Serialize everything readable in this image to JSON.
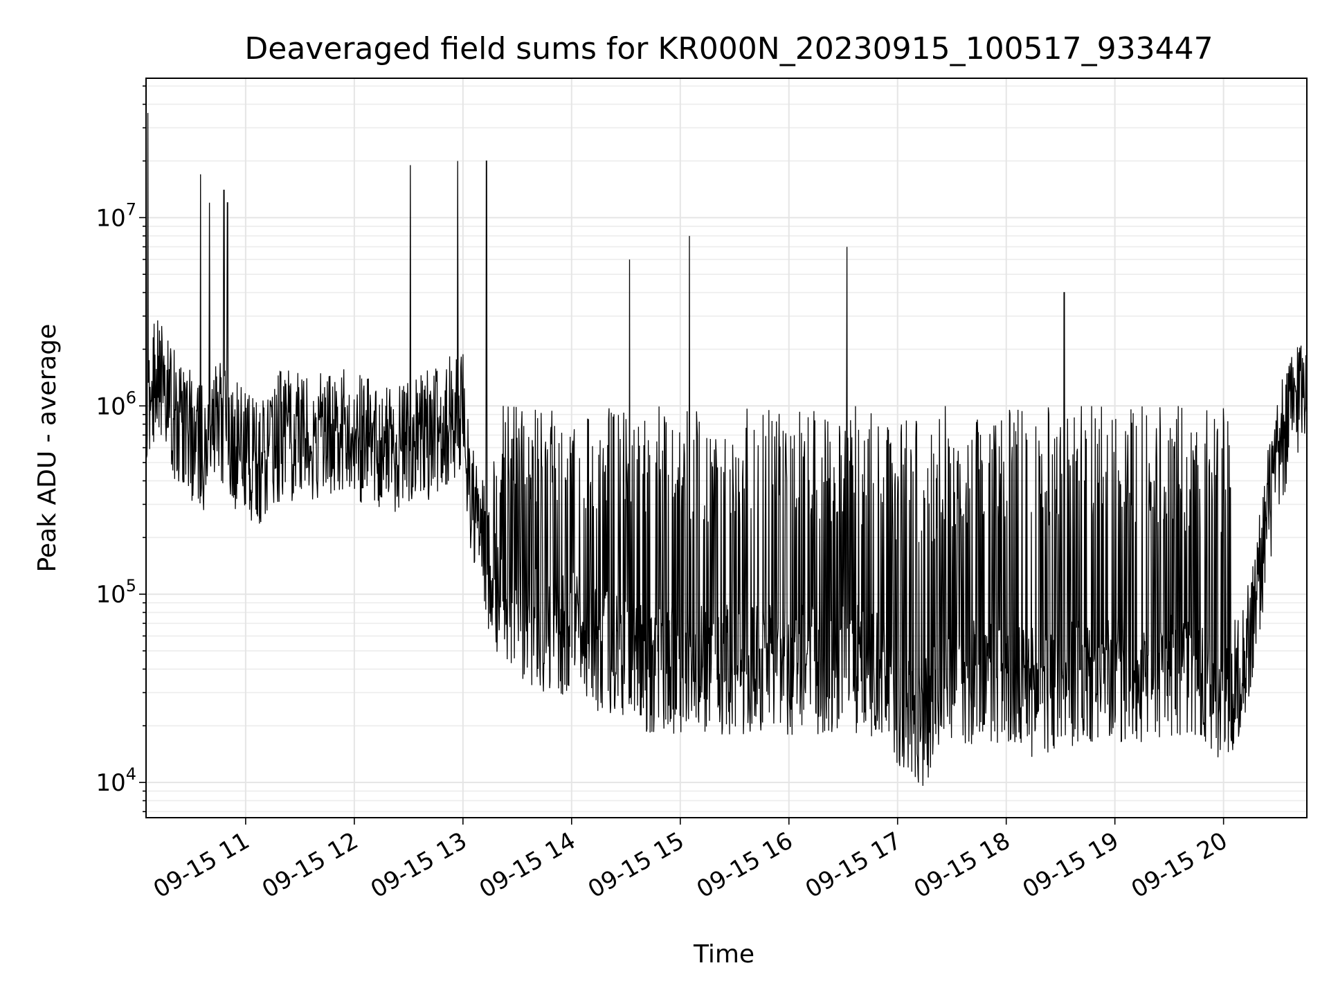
{
  "chart_data": {
    "type": "line",
    "title": "Deaveraged field sums for KR000N_20230915_100517_933447",
    "xlabel": "Time",
    "ylabel": "Peak ADU - average",
    "yscale": "log",
    "ylim": [
      6500,
      55000000
    ],
    "xlim": [
      "2023-09-15 10:05",
      "2023-09-15 20:46"
    ],
    "x_ticks": [
      "09-15 11",
      "09-15 12",
      "09-15 13",
      "09-15 14",
      "09-15 15",
      "09-15 16",
      "09-15 17",
      "09-15 18",
      "09-15 19",
      "09-15 20"
    ],
    "y_ticks": [
      "10^4",
      "10^5",
      "10^6",
      "10^7"
    ],
    "grid": true,
    "series_color": "#000000",
    "series": [
      {
        "x": [
          "2023-09-15 10:05",
          "2023-09-15 10:06",
          "2023-09-15 10:10",
          "2023-09-15 10:20",
          "2023-09-15 10:30",
          "2023-09-15 10:35",
          "2023-09-15 10:36",
          "2023-09-15 10:40",
          "2023-09-15 10:45",
          "2023-09-15 10:48",
          "2023-09-15 10:50",
          "2023-09-15 10:55",
          "2023-09-15 11:05",
          "2023-09-15 11:20",
          "2023-09-15 11:40",
          "2023-09-15 12:00",
          "2023-09-15 12:20",
          "2023-09-15 12:31",
          "2023-09-15 12:40",
          "2023-09-15 12:57",
          "2023-09-15 13:00",
          "2023-09-15 13:05",
          "2023-09-15 13:13",
          "2023-09-15 13:20",
          "2023-09-15 13:40",
          "2023-09-15 14:00",
          "2023-09-15 14:20",
          "2023-09-15 14:32",
          "2023-09-15 14:45",
          "2023-09-15 15:05",
          "2023-09-15 15:20",
          "2023-09-15 15:40",
          "2023-09-15 16:00",
          "2023-09-15 16:20",
          "2023-09-15 16:32",
          "2023-09-15 16:45",
          "2023-09-15 17:00",
          "2023-09-15 17:15",
          "2023-09-15 17:30",
          "2023-09-15 17:50",
          "2023-09-15 18:10",
          "2023-09-15 18:32",
          "2023-09-15 18:50",
          "2023-09-15 19:10",
          "2023-09-15 19:30",
          "2023-09-15 19:50",
          "2023-09-15 20:05",
          "2023-09-15 20:15",
          "2023-09-15 20:25",
          "2023-09-15 20:35",
          "2023-09-15 20:46"
        ],
        "y": [
          900000,
          36000000,
          1500000,
          900000,
          700000,
          17000000,
          600000,
          12000000,
          900000,
          14000000,
          12000000,
          600000,
          500000,
          700000,
          700000,
          700000,
          600000,
          19000000,
          700000,
          20000000,
          900000,
          300000,
          20000000,
          90000,
          70000,
          60000,
          50000,
          6000000,
          40000,
          8000000,
          40000,
          40000,
          40000,
          40000,
          7000000,
          40000,
          25000,
          20000,
          35000,
          35000,
          30000,
          4000000,
          35000,
          35000,
          35000,
          30000,
          30000,
          60000,
          300000,
          800000,
          1600000
        ]
      }
    ]
  }
}
